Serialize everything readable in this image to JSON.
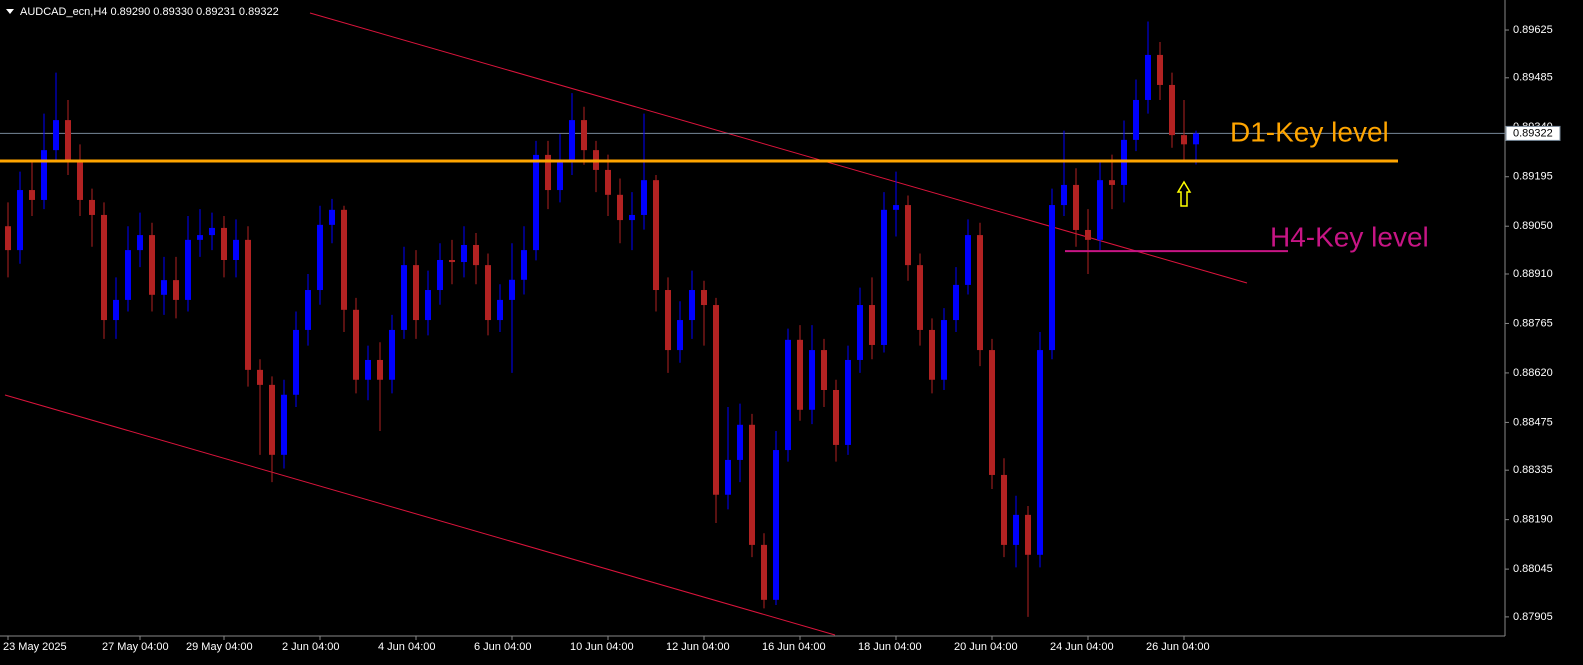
{
  "chart_data": {
    "type": "candlestick",
    "header": "AUDCAD_ecn,H4  0.89290 0.89330 0.89231 0.89322",
    "up_color": "#0000ff",
    "down_color": "#b22222",
    "ylim": [
      0.87849,
      0.89713
    ],
    "yticks": [
      0.89625,
      0.89485,
      {
        "value": 0.8934,
        "label": "0.89340"
      },
      0.89195,
      {
        "value": 0.8905,
        "label": "0.89050"
      },
      {
        "value": 0.8891,
        "label": "0.88910"
      },
      0.88765,
      {
        "value": 0.8862,
        "label": "0.88620"
      },
      0.88475,
      0.88335,
      {
        "value": 0.8819,
        "label": "0.88190"
      },
      0.88045,
      0.87905
    ],
    "current_price": {
      "value": 0.89322,
      "label": "0.89322"
    },
    "categories": [
      "23 May 2025",
      null,
      null,
      null,
      null,
      null,
      null,
      null,
      null,
      null,
      null,
      "27 May 04:00",
      null,
      null,
      null,
      null,
      null,
      null,
      "29 May 04:00",
      null,
      null,
      null,
      null,
      null,
      null,
      null,
      "2 Jun 04:00",
      null,
      null,
      null,
      null,
      null,
      null,
      null,
      "4 Jun 04:00",
      null,
      null,
      null,
      null,
      null,
      null,
      null,
      "6 Jun 04:00",
      null,
      null,
      null,
      null,
      null,
      null,
      null,
      "10 Jun 04:00",
      null,
      null,
      null,
      null,
      null,
      null,
      null,
      "12 Jun 04:00",
      null,
      null,
      null,
      null,
      null,
      null,
      null,
      "16 Jun 04:00",
      null,
      null,
      null,
      null,
      null,
      null,
      null,
      "18 Jun 04:00",
      null,
      null,
      null,
      null,
      null,
      null,
      null,
      "20 Jun 04:00",
      null,
      null,
      null,
      null,
      null,
      null,
      null,
      "24 Jun 04:00",
      null,
      null,
      null,
      null,
      null,
      null,
      null,
      "26 Jun 04:00",
      null
    ],
    "open": [
      0.8905,
      0.8898,
      0.89156,
      0.89127,
      0.89273,
      0.89361,
      0.89244,
      0.89127,
      0.89083,
      0.88775,
      0.88834,
      0.8898,
      0.89024,
      0.88849,
      0.88892,
      0.88834,
      0.8901,
      0.89024,
      0.89045,
      0.88951,
      0.8901,
      0.88629,
      0.88585,
      0.8838,
      0.88556,
      0.88746,
      0.88863,
      0.89054,
      0.89098,
      0.88805,
      0.886,
      0.88658,
      0.886,
      0.88746,
      0.88936,
      0.88775,
      0.88863,
      0.88951,
      0.88945,
      0.88995,
      0.88936,
      0.88775,
      0.88834,
      0.88893,
      0.8898,
      0.89259,
      0.89156,
      0.89244,
      0.89361,
      0.89273,
      0.89215,
      0.89142,
      0.89068,
      0.89083,
      0.89185,
      0.88863,
      0.88687,
      0.88775,
      0.88863,
      0.88819,
      0.88263,
      0.88365,
      0.88468,
      0.88116,
      0.87955,
      0.88394,
      0.88717,
      0.88512,
      0.88687,
      0.8857,
      0.88409,
      0.88658,
      0.88819,
      0.88702,
      0.89098,
      0.89112,
      0.88936,
      0.88746,
      0.886,
      0.88775,
      0.88878,
      0.89024,
      0.88687,
      0.88321,
      0.88116,
      0.88204,
      0.88087,
      0.88687,
      0.89112,
      0.89171,
      0.89039,
      0.8901,
      0.89185,
      0.89171,
      0.89303,
      0.8942,
      0.89552,
      0.89464,
      0.89317,
      0.8929
    ],
    "high": [
      0.8912,
      0.8921,
      0.8924,
      0.8938,
      0.895,
      0.8942,
      0.8929,
      0.8916,
      0.8912,
      0.889,
      0.8905,
      0.8909,
      0.8906,
      0.8896,
      0.8896,
      0.8908,
      0.891,
      0.8909,
      0.8908,
      0.8907,
      0.8905,
      0.8866,
      0.8861,
      0.886,
      0.888,
      0.8891,
      0.8911,
      0.8913,
      0.8911,
      0.8884,
      0.887,
      0.8871,
      0.8879,
      0.8899,
      0.8898,
      0.8892,
      0.89,
      0.8901,
      0.8905,
      0.8903,
      0.8897,
      0.8888,
      0.89,
      0.8905,
      0.893,
      0.893,
      0.8932,
      0.8944,
      0.894,
      0.893,
      0.8926,
      0.8919,
      0.8915,
      0.8938,
      0.892,
      0.889,
      0.8883,
      0.8892,
      0.8889,
      0.8884,
      0.8852,
      0.8853,
      0.885,
      0.8815,
      0.8845,
      0.8875,
      0.8876,
      0.8876,
      0.8872,
      0.886,
      0.887,
      0.8887,
      0.889,
      0.8915,
      0.8921,
      0.8914,
      0.8897,
      0.8878,
      0.8881,
      0.8893,
      0.8907,
      0.8906,
      0.8872,
      0.8837,
      0.8826,
      0.8823,
      0.8874,
      0.8916,
      0.8933,
      0.8922,
      0.891,
      0.8924,
      0.8926,
      0.8936,
      0.8948,
      0.8965,
      0.8959,
      0.895,
      0.8942,
      0.8933
    ],
    "low": [
      0.889,
      0.8894,
      0.8908,
      0.891,
      0.8924,
      0.892,
      0.8908,
      0.8899,
      0.8872,
      0.8872,
      0.888,
      0.8893,
      0.888,
      0.8879,
      0.8878,
      0.888,
      0.8896,
      0.8898,
      0.889,
      0.889,
      0.8858,
      0.8838,
      0.883,
      0.8834,
      0.8852,
      0.887,
      0.8882,
      0.89,
      0.8874,
      0.8856,
      0.8854,
      0.8845,
      0.8856,
      0.8872,
      0.8872,
      0.8873,
      0.8882,
      0.8888,
      0.889,
      0.8888,
      0.8873,
      0.8874,
      0.8862,
      0.8885,
      0.8895,
      0.891,
      0.8912,
      0.892,
      0.8923,
      0.8915,
      0.8908,
      0.89,
      0.8898,
      0.8904,
      0.888,
      0.8862,
      0.8865,
      0.8872,
      0.887,
      0.8818,
      0.8822,
      0.883,
      0.8808,
      0.8793,
      0.8794,
      0.8836,
      0.8848,
      0.8847,
      0.8852,
      0.8836,
      0.8838,
      0.8862,
      0.8866,
      0.8868,
      0.8902,
      0.8889,
      0.887,
      0.8856,
      0.8857,
      0.8874,
      0.8885,
      0.8864,
      0.8828,
      0.8808,
      0.8805,
      0.87905,
      0.8805,
      0.8866,
      0.8908,
      0.8899,
      0.8891,
      0.8898,
      0.891,
      0.8912,
      0.8927,
      0.8938,
      0.8942,
      0.8928,
      0.8924,
      0.89231
    ],
    "close": [
      0.8898,
      0.89156,
      0.89127,
      0.89273,
      0.89361,
      0.89244,
      0.89127,
      0.89083,
      0.88775,
      0.88834,
      0.8898,
      0.89024,
      0.88849,
      0.88892,
      0.88834,
      0.8901,
      0.89024,
      0.89045,
      0.88951,
      0.8901,
      0.88629,
      0.88585,
      0.8838,
      0.88556,
      0.88746,
      0.88863,
      0.89054,
      0.89098,
      0.88805,
      0.886,
      0.88658,
      0.886,
      0.88746,
      0.88936,
      0.88775,
      0.88863,
      0.88951,
      0.88945,
      0.88995,
      0.88936,
      0.88775,
      0.88834,
      0.88893,
      0.8898,
      0.89259,
      0.89156,
      0.89244,
      0.89361,
      0.89273,
      0.89215,
      0.89142,
      0.89068,
      0.89083,
      0.89185,
      0.88863,
      0.88687,
      0.88775,
      0.88863,
      0.88819,
      0.88263,
      0.88365,
      0.88468,
      0.88116,
      0.87955,
      0.88394,
      0.88717,
      0.88512,
      0.88687,
      0.8857,
      0.88409,
      0.88658,
      0.88819,
      0.88702,
      0.89098,
      0.89112,
      0.88936,
      0.88746,
      0.886,
      0.88775,
      0.88878,
      0.89024,
      0.88687,
      0.88321,
      0.88116,
      0.88204,
      0.88087,
      0.88687,
      0.89112,
      0.89171,
      0.89039,
      0.8901,
      0.89185,
      0.89171,
      0.89303,
      0.8942,
      0.89552,
      0.89464,
      0.89317,
      0.8929,
      0.89322
    ],
    "annotations": [
      {
        "text": "D1-Key level",
        "value": 0.89241,
        "color": "#ffa500"
      },
      {
        "text": "H4-Key level",
        "value": 0.88977,
        "color": "#c71585"
      }
    ]
  }
}
